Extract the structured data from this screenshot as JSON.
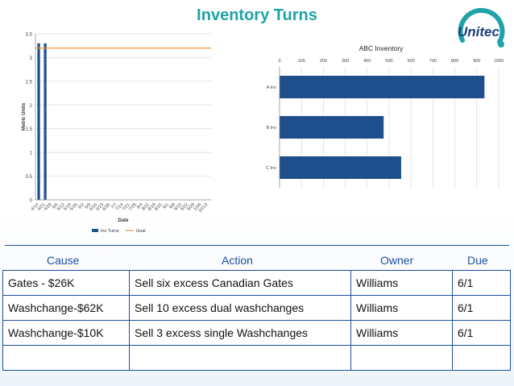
{
  "page": {
    "title": "Inventory Turns",
    "logo_text": "Unitec"
  },
  "chart_data": [
    {
      "type": "bar",
      "title": "",
      "xlabel": "Date",
      "ylabel": "Metric Units",
      "ylim": [
        0,
        3.5
      ],
      "yticks": [
        "0",
        "0.5",
        "1",
        "1.5",
        "2",
        "2.5",
        "3",
        "3.5"
      ],
      "categories": [
        "4/14",
        "4/21",
        "4/28",
        "5/5",
        "5/12",
        "5/19",
        "5/26",
        "6/2",
        "6/9",
        "6/16",
        "6/23",
        "6/30",
        "7/7",
        "7/14",
        "7/21",
        "7/28",
        "8/4",
        "8/11",
        "8/18",
        "8/25",
        "9/1",
        "9/8",
        "9/15",
        "9/22",
        "9/29",
        "10/6",
        "10/13"
      ],
      "series": [
        {
          "name": "Inv Turns",
          "type": "bar",
          "color": "#1f4e8c",
          "values": [
            3.3,
            3.3,
            null,
            null,
            null,
            null,
            null,
            null,
            null,
            null,
            null,
            null,
            null,
            null,
            null,
            null,
            null,
            null,
            null,
            null,
            null,
            null,
            null,
            null,
            null,
            null,
            null
          ]
        },
        {
          "name": "Goal",
          "type": "line",
          "color": "#e8963a",
          "value": 3.2
        }
      ],
      "legend": "bottom",
      "grid": true
    },
    {
      "type": "bar",
      "orientation": "horizontal",
      "title": "ABC Inventory",
      "xlim": [
        0,
        1000
      ],
      "xticks": [
        "0",
        "100",
        "200",
        "300",
        "400",
        "500",
        "600",
        "700",
        "800",
        "900",
        "1000"
      ],
      "categories": [
        "A Inv",
        "B Inv",
        "C Inv"
      ],
      "values": [
        935,
        475,
        555
      ],
      "color": "#1f4e8c",
      "grid": true
    }
  ],
  "action_plan": {
    "headers": [
      "Cause",
      "Action",
      "Owner",
      "Due"
    ],
    "rows": [
      [
        "Gates - $26K",
        "Sell six excess Canadian Gates",
        "Williams",
        "6/1"
      ],
      [
        "Washchange-$62K",
        "Sell 10 excess dual washchanges",
        "Williams",
        "6/1"
      ],
      [
        "Washchange-$10K",
        "Sell 3 excess single Washchanges",
        "Williams",
        "6/1"
      ],
      [
        "",
        "",
        "",
        ""
      ]
    ]
  }
}
